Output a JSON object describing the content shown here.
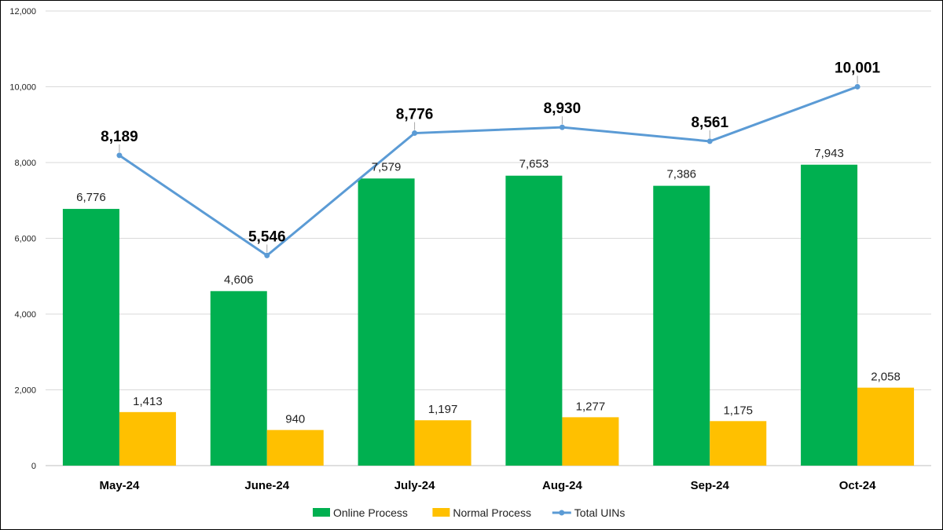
{
  "chart_data": {
    "type": "bar",
    "categories": [
      "May-24",
      "June-24",
      "July-24",
      "Aug-24",
      "Sep-24",
      "Oct-24"
    ],
    "series": [
      {
        "name": "Online Process",
        "type": "bar",
        "color": "#00b050",
        "values": [
          6776,
          4606,
          7579,
          7653,
          7386,
          7943
        ],
        "labels": [
          "6,776",
          "4,606",
          "7,579",
          "7,653",
          "7,386",
          "7,943"
        ]
      },
      {
        "name": "Normal Process",
        "type": "bar",
        "color": "#ffc000",
        "values": [
          1413,
          940,
          1197,
          1277,
          1175,
          2058
        ],
        "labels": [
          "1,413",
          "940",
          "1,197",
          "1,277",
          "1,175",
          "2,058"
        ]
      },
      {
        "name": "Total UINs",
        "type": "line",
        "color": "#5b9bd5",
        "values": [
          8189,
          5546,
          8776,
          8930,
          8561,
          10001
        ],
        "labels": [
          "8,189",
          "5,546",
          "8,776",
          "8,930",
          "8,561",
          "10,001"
        ]
      }
    ],
    "ylim": [
      0,
      12000
    ],
    "yticks": [
      0,
      2000,
      4000,
      6000,
      8000,
      10000,
      12000
    ],
    "ytick_labels": [
      "0",
      "2,000",
      "4,000",
      "6,000",
      "8,000",
      "10,000",
      "12,000"
    ],
    "grid": true,
    "legend": "bottom",
    "title": "",
    "xlabel": "",
    "ylabel": ""
  }
}
